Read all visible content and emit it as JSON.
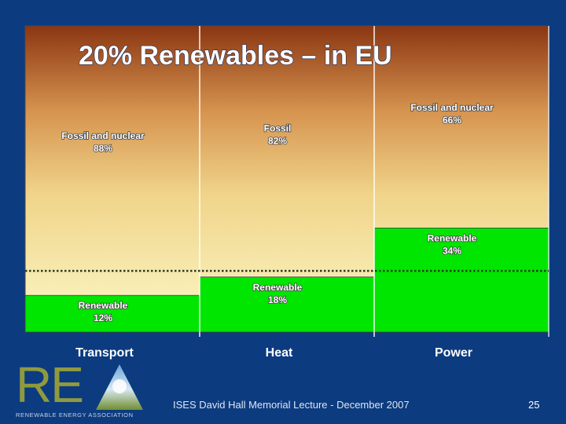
{
  "slide": {
    "title": "20% Renewables – in EU",
    "footer": "ISES David Hall Memorial Lecture - December 2007",
    "page_number": "25",
    "logo": {
      "letters": "RE",
      "tagline": "RENEWABLE ENERGY ASSOCIATION"
    }
  },
  "colors": {
    "background": "#0c3b7f",
    "renewable": "#00e600",
    "gradient_top": "#8b3612",
    "gradient_mid": "#f0d48a",
    "gradient_bottom": "#fbf8c6",
    "target_line": "#2b3a1e"
  },
  "chart_data": {
    "type": "bar",
    "stacked": true,
    "categories": [
      "Transport",
      "Heat",
      "Power"
    ],
    "series": [
      {
        "name": "Renewable",
        "values": [
          12,
          18,
          34
        ],
        "labels": [
          [
            "Renewable",
            "12%"
          ],
          [
            "Renewable",
            "18%"
          ],
          [
            "Renewable",
            "34%"
          ]
        ]
      },
      {
        "name": "Fossil",
        "values": [
          88,
          82,
          66
        ],
        "labels": [
          [
            "Fossil and nuclear",
            "88%"
          ],
          [
            "Fossil",
            "82%"
          ],
          [
            "Fossil and nuclear",
            "66%"
          ]
        ]
      }
    ],
    "target_line": 20,
    "ylim": [
      0,
      100
    ],
    "title": "20% Renewables – in EU",
    "xlabel": "",
    "ylabel": ""
  }
}
